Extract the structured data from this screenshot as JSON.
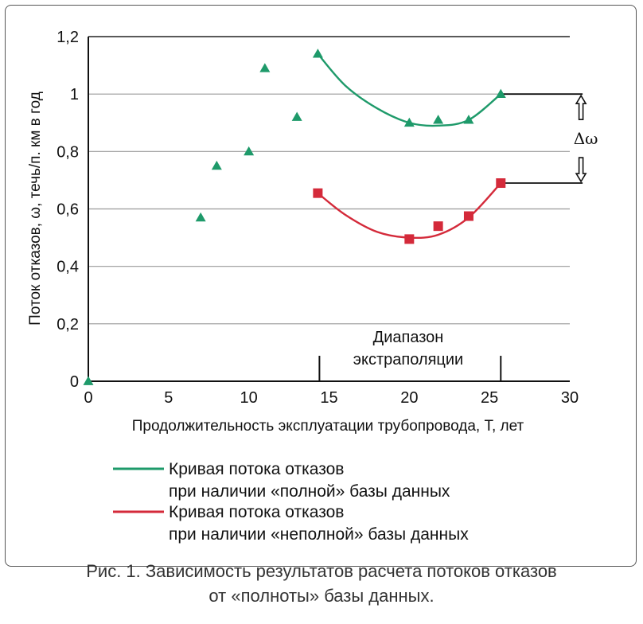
{
  "chart_data": {
    "type": "line",
    "ylabel": "Поток отказов, ω, течь/п. км в год",
    "xlabel": "Продолжительность эксплуатации трубопровода, T, лет",
    "xlim": [
      0,
      30
    ],
    "ylim": [
      0,
      1.2
    ],
    "x_ticks": [
      "0",
      "5",
      "10",
      "15",
      "20",
      "25",
      "30"
    ],
    "x_tick_values": [
      0,
      5,
      10,
      15,
      20,
      25,
      30
    ],
    "y_ticks": [
      "0",
      "0,2",
      "0,4",
      "0,6",
      "0,8",
      "1",
      "1,2"
    ],
    "y_tick_values": [
      0,
      0.2,
      0.4,
      0.6,
      0.8,
      1.0,
      1.2
    ],
    "grid": "horizontal",
    "observed_points": {
      "marker": "triangle",
      "color": "#1e9a6a",
      "points": [
        {
          "x": 0,
          "y": 0
        },
        {
          "x": 7,
          "y": 0.57
        },
        {
          "x": 8,
          "y": 0.75
        },
        {
          "x": 10,
          "y": 0.8
        },
        {
          "x": 11,
          "y": 1.09
        },
        {
          "x": 13,
          "y": 0.92
        },
        {
          "x": 14.3,
          "y": 1.14
        }
      ]
    },
    "series": [
      {
        "legend": "Кривая потока отказов при наличии «полной» базы данных",
        "color": "#1e9a6a",
        "marker": "triangle",
        "curve": [
          [
            14.3,
            1.14
          ],
          [
            16,
            1.03
          ],
          [
            18,
            0.95
          ],
          [
            20,
            0.9
          ],
          [
            21.8,
            0.89
          ],
          [
            23.7,
            0.91
          ],
          [
            25.7,
            1.0
          ]
        ],
        "points": [
          {
            "x": 20,
            "y": 0.9
          },
          {
            "x": 21.8,
            "y": 0.91
          },
          {
            "x": 23.7,
            "y": 0.91
          },
          {
            "x": 25.7,
            "y": 1.0
          }
        ],
        "extension": [
          [
            25.7,
            1.0
          ],
          [
            30.8,
            1.0
          ]
        ]
      },
      {
        "legend": "Кривая потока отказов при наличии «неполной» базы данных",
        "color": "#d42a3a",
        "marker": "square",
        "curve": [
          [
            14.3,
            0.655
          ],
          [
            16,
            0.58
          ],
          [
            18,
            0.52
          ],
          [
            20,
            0.5
          ],
          [
            21.8,
            0.51
          ],
          [
            23.7,
            0.57
          ],
          [
            25.7,
            0.69
          ]
        ],
        "points": [
          {
            "x": 14.3,
            "y": 0.655
          },
          {
            "x": 20,
            "y": 0.495
          },
          {
            "x": 21.8,
            "y": 0.54
          },
          {
            "x": 23.7,
            "y": 0.575
          },
          {
            "x": 25.7,
            "y": 0.69
          }
        ],
        "extension": [
          [
            25.7,
            0.69
          ],
          [
            30.8,
            0.69
          ]
        ]
      }
    ],
    "extrapolation_range": {
      "label": "Диапазон экстраполяции",
      "from": 14.4,
      "to": 25.7
    },
    "delta": {
      "label": "Δω",
      "from": 0.69,
      "to": 1.0
    },
    "legend_position": "bottom"
  },
  "legend": {
    "line1a": "Кривая потока отказов",
    "line1b": "при наличии «полной» базы данных",
    "line2a": "Кривая потока отказов",
    "line2b": "при наличии «неполной» базы данных"
  },
  "caption": {
    "line1": "Рис. 1. Зависимость результатов расчета потоков отказов",
    "line2": "от «полноты» базы данных."
  },
  "annotation": {
    "range_line1": "Диапазон",
    "range_line2": "экстраполяции",
    "delta": "Δω"
  }
}
